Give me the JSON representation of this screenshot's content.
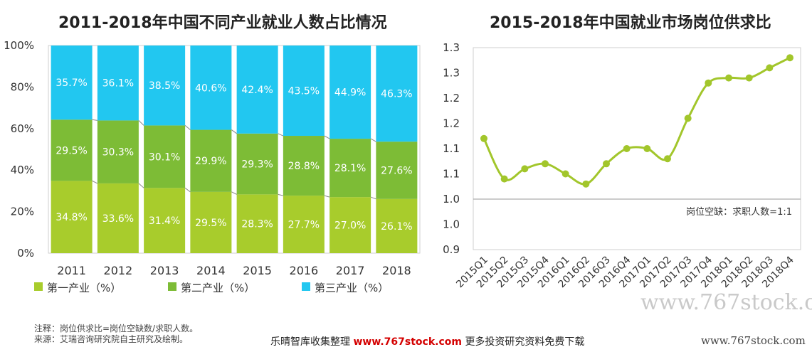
{
  "left_title": "2011-2018年中国不同产业就业人数占比情况",
  "right_title": "2015-2018年中国就业市场岗位供求比",
  "notes": [
    "注释：岗位供求比=岗位空缺数/求职人数。",
    "来源：艾瑞咨询研究院自主研究及绘制。"
  ],
  "footer": {
    "left": "乐晴智库收集整理",
    "url": "www.767stock.com",
    "right": "更多投资研究资料免费下载"
  },
  "watermarks": {
    "big": "www.767stock.co",
    "small": "www.767stock.com"
  },
  "chart_data": [
    {
      "type": "bar",
      "stacked": true,
      "title": "2011-2018年中国不同产业就业人数占比情况",
      "categories": [
        "2011",
        "2012",
        "2013",
        "2014",
        "2015",
        "2016",
        "2017",
        "2018"
      ],
      "series": [
        {
          "name": "第一产业（%）",
          "color": "#a8cc2c",
          "values": [
            34.8,
            33.6,
            31.4,
            29.5,
            28.3,
            27.7,
            27.0,
            26.1
          ],
          "labels": [
            "34.8%",
            "33.6%",
            "31.4%",
            "29.5%",
            "28.3%",
            "27.7%",
            "27.0%",
            "26.1%"
          ]
        },
        {
          "name": "第二产业（%）",
          "color": "#7dbc36",
          "values": [
            29.5,
            30.3,
            30.1,
            29.9,
            29.3,
            28.8,
            28.1,
            27.6
          ],
          "labels": [
            "29.5%",
            "30.3%",
            "30.1%",
            "29.9%",
            "29.3%",
            "28.8%",
            "28.1%",
            "27.6%"
          ]
        },
        {
          "name": "第三产业（%）",
          "color": "#22c7f0",
          "values": [
            35.7,
            36.1,
            38.5,
            40.6,
            42.4,
            43.5,
            44.9,
            46.3
          ],
          "labels": [
            "35.7%",
            "36.1%",
            "38.5%",
            "40.6%",
            "42.4%",
            "43.5%",
            "44.9%",
            "46.3%"
          ]
        }
      ],
      "yticks": [
        "0%",
        "20%",
        "40%",
        "60%",
        "80%",
        "100%"
      ],
      "ylim": [
        0,
        100
      ],
      "legend_position": "bottom"
    },
    {
      "type": "line",
      "title": "2015-2018年中国就业市场岗位供求比",
      "color": "#a2c62b",
      "categories": [
        "2015Q1",
        "2015Q2",
        "2015Q3",
        "2015Q4",
        "2016Q1",
        "2016Q2",
        "2016Q3",
        "2016Q4",
        "2017Q1",
        "2017Q2",
        "2017Q3",
        "2017Q4",
        "2018Q1",
        "2018Q2",
        "2018Q3",
        "2018Q4"
      ],
      "values": [
        1.12,
        1.04,
        1.06,
        1.07,
        1.05,
        1.03,
        1.07,
        1.1,
        1.1,
        1.08,
        1.16,
        1.23,
        1.24,
        1.24,
        1.26,
        1.28
      ],
      "yticks": [
        "0.9",
        "1.0",
        "1.0",
        "1.1",
        "1.1",
        "1.2",
        "1.2",
        "1.3",
        "1.3"
      ],
      "ylim": [
        0.9,
        1.3
      ],
      "reference_line": {
        "value": 1.0,
        "label": "岗位空缺：求职人数=1:1"
      }
    }
  ]
}
